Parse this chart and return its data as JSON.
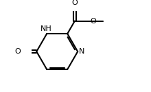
{
  "bg_color": "#ffffff",
  "line_color": "#000000",
  "line_width": 1.5,
  "font_size": 8.0,
  "figsize": [
    2.2,
    1.34
  ],
  "dpi": 100,
  "xlim": [
    -0.05,
    1.15
  ],
  "ylim": [
    -0.05,
    1.05
  ]
}
